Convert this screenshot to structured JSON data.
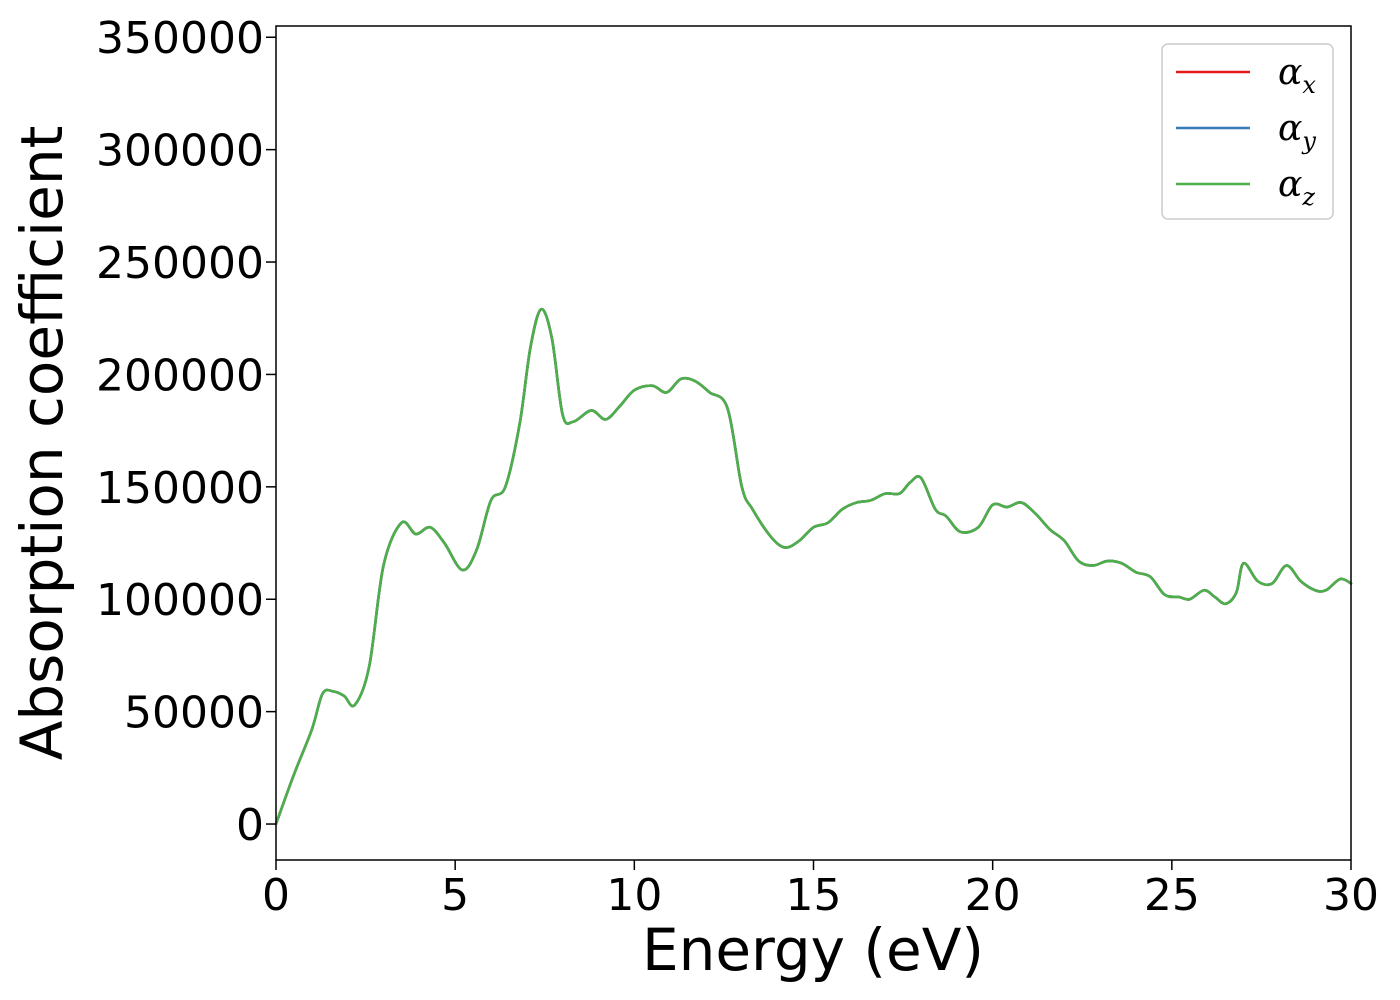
{
  "chart_data": {
    "type": "line",
    "title": "",
    "xlabel": "Energy (eV)",
    "ylabel": "Absorption coefficient",
    "xlim": [
      0,
      30
    ],
    "ylim": [
      -16000,
      355000
    ],
    "xticks": [
      0,
      5,
      10,
      15,
      20,
      25,
      30
    ],
    "yticks": [
      0,
      50000,
      100000,
      150000,
      200000,
      250000,
      300000,
      350000
    ],
    "grid": false,
    "legend_position": "top-right",
    "x": [
      0,
      0.5,
      1.0,
      1.3,
      1.6,
      1.9,
      2.2,
      2.6,
      3.0,
      3.5,
      3.9,
      4.3,
      4.7,
      5.2,
      5.6,
      6.0,
      6.4,
      6.8,
      7.1,
      7.4,
      7.7,
      8.0,
      8.3,
      8.8,
      9.2,
      9.6,
      10.0,
      10.5,
      10.9,
      11.3,
      11.7,
      12.1,
      12.6,
      13.0,
      13.3,
      13.8,
      14.2,
      14.6,
      15.0,
      15.4,
      15.8,
      16.2,
      16.6,
      17.0,
      17.4,
      17.7,
      18.0,
      18.4,
      18.7,
      19.1,
      19.6,
      20.0,
      20.4,
      20.8,
      21.2,
      21.6,
      22.0,
      22.4,
      22.8,
      23.2,
      23.6,
      24.0,
      24.4,
      24.8,
      25.2,
      25.5,
      25.9,
      26.2,
      26.5,
      26.8,
      27.0,
      27.4,
      27.8,
      28.2,
      28.6,
      29.0,
      29.3,
      29.7,
      30.0
    ],
    "series": [
      {
        "name": "α_x",
        "symbol": "α",
        "subscript": "x",
        "color": "#e41a1c",
        "values": [
          0,
          22000,
          42000,
          58000,
          59000,
          57000,
          53000,
          70000,
          115000,
          134000,
          129000,
          132000,
          125000,
          113000,
          122000,
          144000,
          150000,
          178000,
          212000,
          229000,
          216000,
          182000,
          179000,
          184000,
          180000,
          186000,
          193000,
          195000,
          192000,
          198000,
          197000,
          192000,
          185000,
          150000,
          140000,
          128000,
          123000,
          126000,
          132000,
          134000,
          140000,
          143000,
          144000,
          147000,
          147000,
          152000,
          154000,
          140000,
          137000,
          130000,
          132000,
          142000,
          141000,
          143000,
          138000,
          131000,
          126000,
          117000,
          115000,
          117000,
          116000,
          112000,
          110000,
          102000,
          101000,
          100000,
          104000,
          101000,
          98000,
          103000,
          116000,
          108000,
          107000,
          115000,
          108000,
          104000,
          104000,
          109000,
          107000
        ]
      },
      {
        "name": "α_y",
        "symbol": "α",
        "subscript": "y",
        "color": "#377eb8",
        "values": [
          0,
          22000,
          42000,
          58000,
          59000,
          57000,
          53000,
          70000,
          115000,
          134000,
          129000,
          132000,
          125000,
          113000,
          122000,
          144000,
          150000,
          178000,
          212000,
          229000,
          216000,
          182000,
          179000,
          184000,
          180000,
          186000,
          193000,
          195000,
          192000,
          198000,
          197000,
          192000,
          185000,
          150000,
          140000,
          128000,
          123000,
          126000,
          132000,
          134000,
          140000,
          143000,
          144000,
          147000,
          147000,
          152000,
          154000,
          140000,
          137000,
          130000,
          132000,
          142000,
          141000,
          143000,
          138000,
          131000,
          126000,
          117000,
          115000,
          117000,
          116000,
          112000,
          110000,
          102000,
          101000,
          100000,
          104000,
          101000,
          98000,
          103000,
          116000,
          108000,
          107000,
          115000,
          108000,
          104000,
          104000,
          109000,
          107000
        ]
      },
      {
        "name": "α_z",
        "symbol": "α",
        "subscript": "z",
        "color": "#4daf4a",
        "values": [
          0,
          22000,
          42000,
          58000,
          59000,
          57000,
          53000,
          70000,
          115000,
          134000,
          129000,
          132000,
          125000,
          113000,
          122000,
          144000,
          150000,
          178000,
          212000,
          229000,
          216000,
          182000,
          179000,
          184000,
          180000,
          186000,
          193000,
          195000,
          192000,
          198000,
          197000,
          192000,
          185000,
          150000,
          140000,
          128000,
          123000,
          126000,
          132000,
          134000,
          140000,
          143000,
          144000,
          147000,
          147000,
          152000,
          154000,
          140000,
          137000,
          130000,
          132000,
          142000,
          141000,
          143000,
          138000,
          131000,
          126000,
          117000,
          115000,
          117000,
          116000,
          112000,
          110000,
          102000,
          101000,
          100000,
          104000,
          101000,
          98000,
          103000,
          116000,
          108000,
          107000,
          115000,
          108000,
          104000,
          104000,
          109000,
          107000
        ]
      }
    ]
  }
}
